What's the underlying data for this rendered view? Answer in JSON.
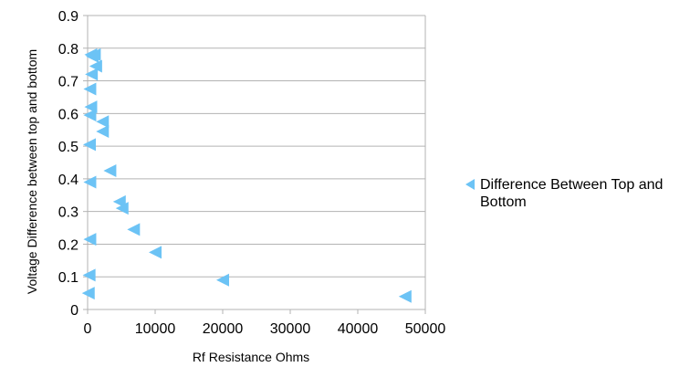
{
  "chart_data": {
    "type": "scatter",
    "title": "",
    "xlabel": "Rf Resistance Ohms",
    "ylabel": "Voltage Difference between top and bottom",
    "xlim": [
      0,
      50000
    ],
    "ylim": [
      0,
      0.9
    ],
    "xticks": [
      0,
      10000,
      20000,
      30000,
      40000,
      50000
    ],
    "xtick_labels": [
      "0",
      "10000",
      "20000",
      "30000",
      "40000",
      "50000"
    ],
    "yticks": [
      0,
      0.1,
      0.2,
      0.3,
      0.4,
      0.5,
      0.6,
      0.7,
      0.8,
      0.9
    ],
    "ytick_labels": [
      "0",
      "0.1",
      "0.2",
      "0.3",
      "0.4",
      "0.5",
      "0.6",
      "0.7",
      "0.8",
      "0.9"
    ],
    "grid": "horizontal",
    "legend_position": "right",
    "marker": "left-triangle",
    "series": [
      {
        "name": "Difference Between Top and Bottom",
        "color": "#6cc3f5",
        "x": [
          470,
          680,
          1000,
          1200,
          560,
          330,
          470,
          330,
          2200,
          2200,
          270,
          3300,
          330,
          4700,
          5100,
          6800,
          330,
          10000,
          220,
          20000,
          100,
          47000
        ],
        "y": [
          0.78,
          0.775,
          0.78,
          0.745,
          0.72,
          0.675,
          0.62,
          0.595,
          0.575,
          0.545,
          0.505,
          0.425,
          0.39,
          0.33,
          0.31,
          0.245,
          0.215,
          0.175,
          0.105,
          0.09,
          0.05,
          0.04
        ]
      }
    ]
  }
}
